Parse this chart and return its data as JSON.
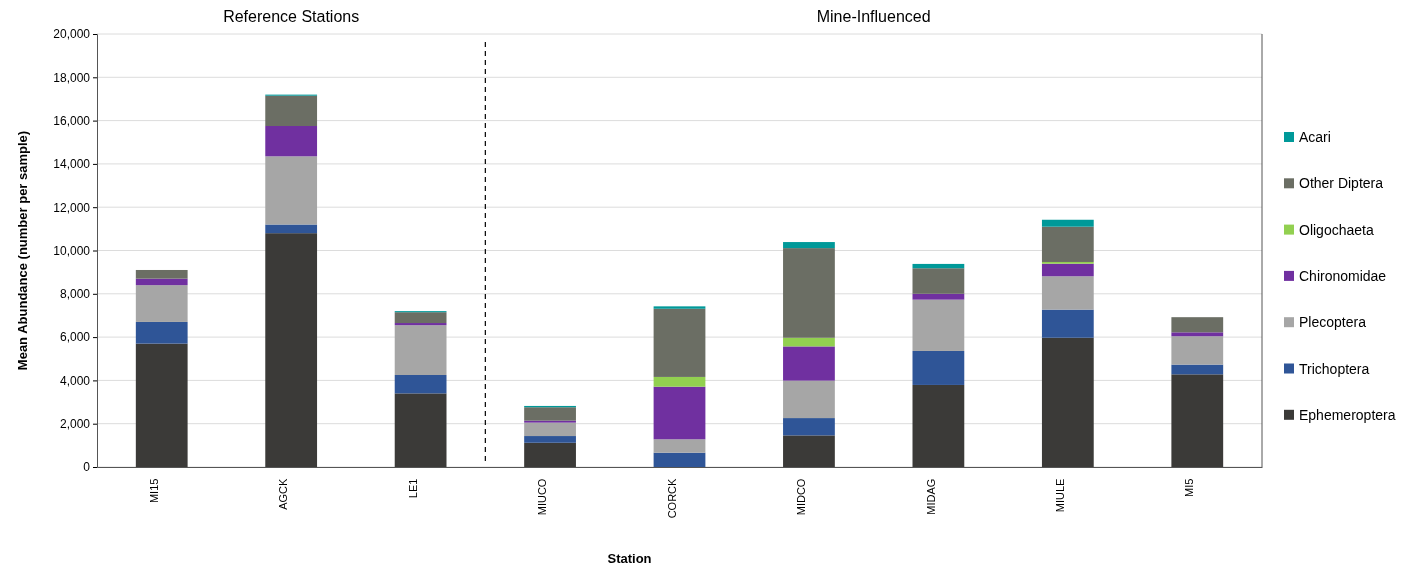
{
  "chart_data": {
    "type": "bar",
    "stacked": true,
    "xlabel": "Station",
    "ylabel": "Mean Abundance (number per sample)",
    "categories": [
      "MI15",
      "AGCK",
      "LE1",
      "MIUCO",
      "CORCK",
      "MIDCO",
      "MIDAG",
      "MIULE",
      "MI5"
    ],
    "series": [
      {
        "name": "Ephemeroptera",
        "color": "#3b3a38",
        "values": [
          5700,
          10800,
          3400,
          1120,
          0,
          1460,
          3790,
          5970,
          4280
        ]
      },
      {
        "name": "Trichoptera",
        "color": "#2f5597",
        "values": [
          1000,
          400,
          850,
          310,
          660,
          800,
          1570,
          1300,
          450
        ]
      },
      {
        "name": "Plecoptera",
        "color": "#a6a6a6",
        "values": [
          1700,
          3150,
          2300,
          620,
          620,
          1730,
          2370,
          1540,
          1310
        ]
      },
      {
        "name": "Chironomidae",
        "color": "#7030a0",
        "values": [
          300,
          1400,
          100,
          90,
          2430,
          1580,
          270,
          580,
          180
        ]
      },
      {
        "name": "Oligochaeta",
        "color": "#92d050",
        "values": [
          0,
          0,
          0,
          0,
          450,
          400,
          0,
          80,
          0
        ]
      },
      {
        "name": "Other Diptera",
        "color": "#6b6e64",
        "values": [
          400,
          1400,
          500,
          620,
          3150,
          4140,
          1180,
          1630,
          700
        ]
      },
      {
        "name": "Acari",
        "color": "#009999",
        "values": [
          0,
          50,
          50,
          60,
          110,
          280,
          200,
          320,
          0
        ]
      }
    ],
    "ylim": [
      0,
      20000
    ],
    "yticks": [
      {
        "value": 0,
        "label": "0"
      },
      {
        "value": 2000,
        "label": "2,000"
      },
      {
        "value": 4000,
        "label": "4,000"
      },
      {
        "value": 6000,
        "label": "6,000"
      },
      {
        "value": 8000,
        "label": "8,000"
      },
      {
        "value": 10000,
        "label": "10,000"
      },
      {
        "value": 12000,
        "label": "12,000"
      },
      {
        "value": 14000,
        "label": "14,000"
      },
      {
        "value": 16000,
        "label": "16,000"
      },
      {
        "value": 18000,
        "label": "18,000"
      },
      {
        "value": 20000,
        "label": "20,000"
      }
    ],
    "grid": "y",
    "legend": "right",
    "annotations": [
      "Reference Stations",
      "Mine-Influenced"
    ]
  }
}
